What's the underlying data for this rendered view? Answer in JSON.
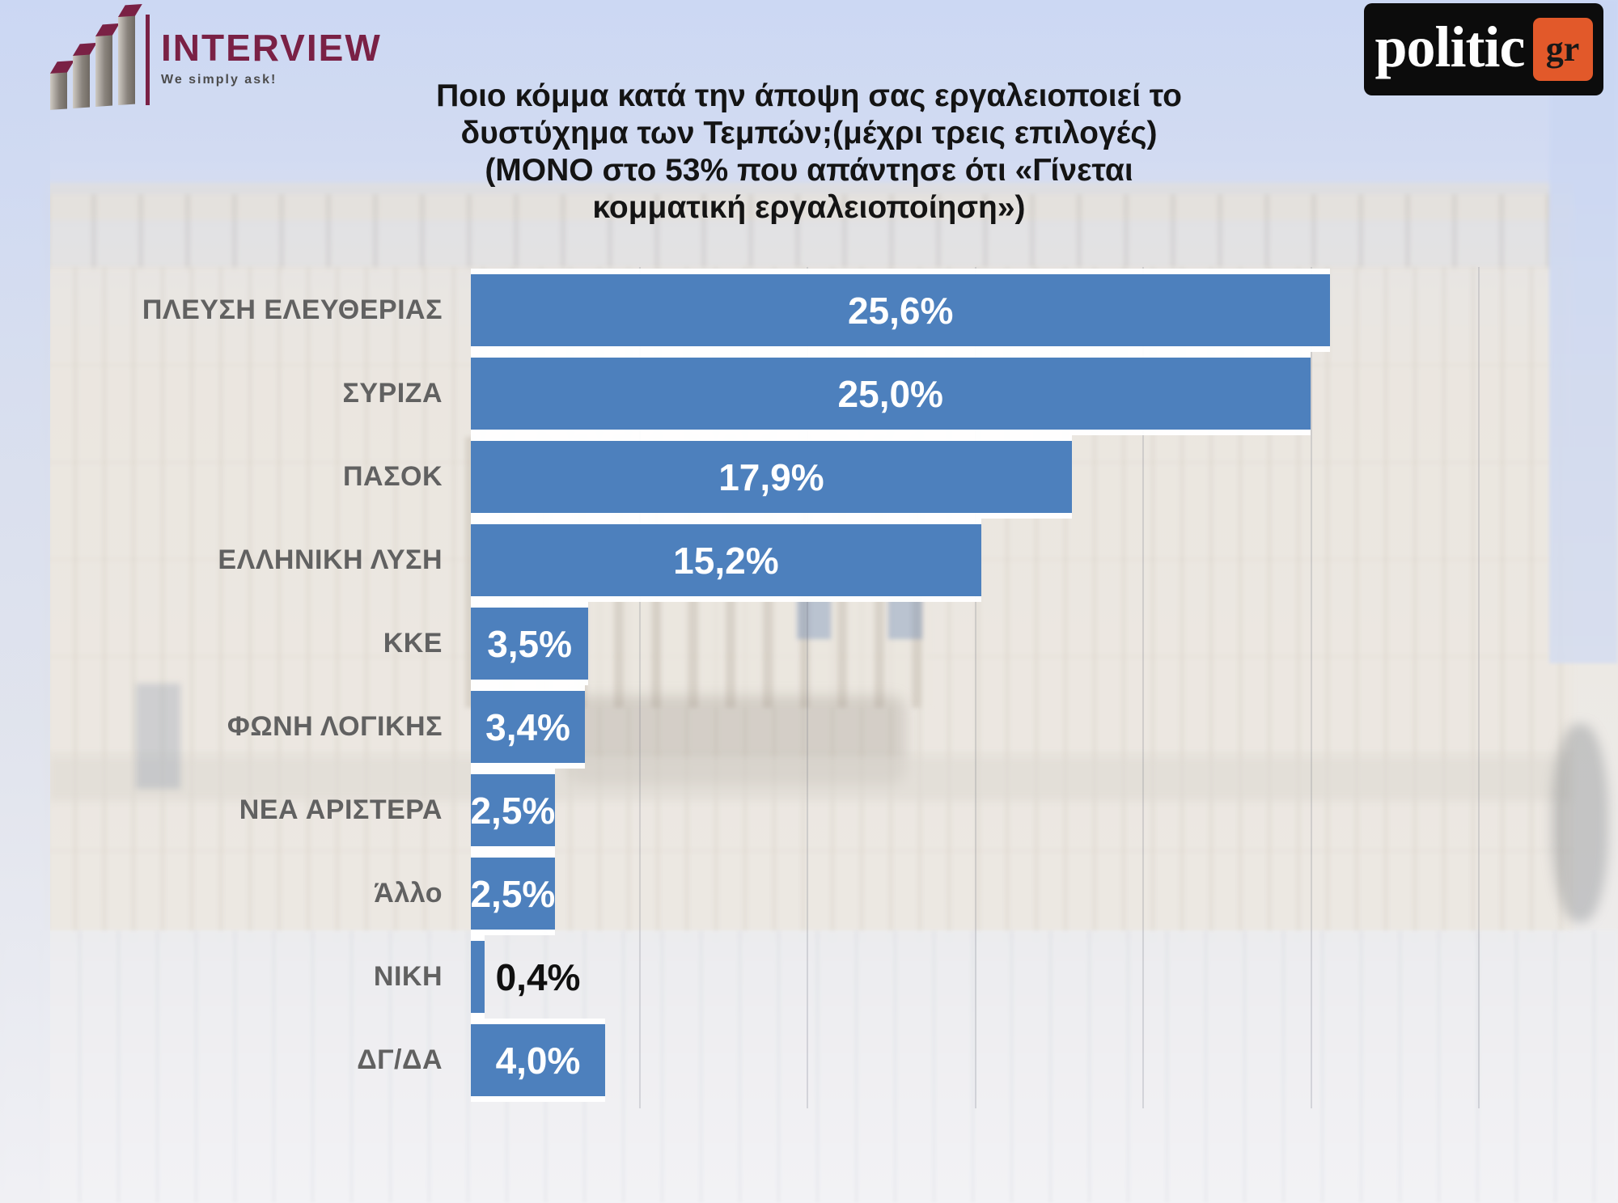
{
  "header": {
    "interview_logo": {
      "brand": "INTERVIEW",
      "tagline": "We simply ask!"
    },
    "politic_logo": {
      "brand": "politic",
      "tld": "gr"
    },
    "title_lines": [
      "Ποιο κόμμα κατά την άποψη σας εργαλειοποιεί το",
      "δυστύχημα των Τεμπών;(μέχρι τρεις επιλογές)",
      "(ΜΟΝΟ στο 53% που απάντησε ότι «Γίνεται",
      "κομματική εργαλειοποίηση»)"
    ]
  },
  "chart_data": {
    "type": "bar",
    "orientation": "horizontal",
    "title": "Ποιο κόμμα κατά την άποψη σας εργαλειοποιεί το δυστύχημα των Τεμπών;(μέχρι τρεις επιλογές) (ΜΟΝΟ στο 53% που απάντησε ότι «Γίνεται κομματική εργαλειοποίηση»)",
    "categories": [
      "ΠΛΕΥΣΗ ΕΛΕΥΘΕΡΙΑΣ",
      "ΣΥΡΙΖΑ",
      "ΠΑΣΟΚ",
      "ΕΛΛΗΝΙΚΗ ΛΥΣΗ",
      "ΚΚΕ",
      "ΦΩΝΗ ΛΟΓΙΚΗΣ",
      "ΝΕΑ ΑΡΙΣΤΕΡΑ",
      "Άλλο",
      "ΝΙΚΗ",
      "ΔΓ/ΔΑ"
    ],
    "values": [
      25.6,
      25.0,
      17.9,
      15.2,
      3.5,
      3.4,
      2.5,
      2.5,
      0.4,
      4.0
    ],
    "value_labels": [
      "25,6%",
      "25,0%",
      "17,9%",
      "15,2%",
      "3,5%",
      "3,4%",
      "2,5%",
      "2,5%",
      "0,4%",
      "4,0%"
    ],
    "unit": "%",
    "xlim": [
      0,
      33
    ],
    "gridlines_pct": [
      5,
      10,
      15,
      20,
      25,
      30
    ],
    "grid": "faint-vertical",
    "legend": "none",
    "bar_color": "#4d80bd",
    "value_color_inside": "#ffffff",
    "value_color_outside": "#101010",
    "label_color": "#616161",
    "background": "faded photo of the Hellenic Parliament building"
  }
}
